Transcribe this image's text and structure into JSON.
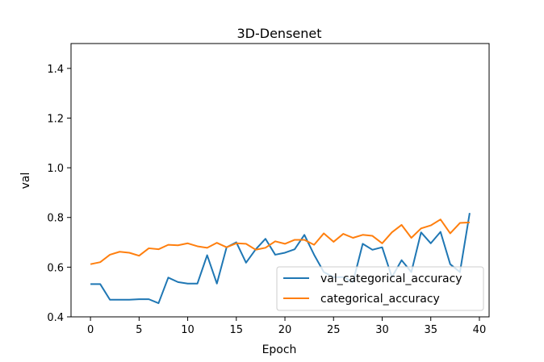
{
  "chart_data": {
    "type": "line",
    "title": "3D-Densenet",
    "xlabel": "Epoch",
    "ylabel": "val",
    "xlim": [
      -2,
      41
    ],
    "ylim": [
      0.4,
      1.5
    ],
    "xticks": [
      0,
      5,
      10,
      15,
      20,
      25,
      30,
      35,
      40
    ],
    "xtick_labels": [
      "0",
      "5",
      "10",
      "15",
      "20",
      "25",
      "30",
      "35",
      "40"
    ],
    "yticks": [
      0.4,
      0.6,
      0.8,
      1.0,
      1.2,
      1.4
    ],
    "ytick_labels": [
      "0.4",
      "0.6",
      "0.8",
      "1.0",
      "1.2",
      "1.4"
    ],
    "grid": false,
    "legend_position": "lower-right",
    "x": [
      0,
      1,
      2,
      3,
      4,
      5,
      6,
      7,
      8,
      9,
      10,
      11,
      12,
      13,
      14,
      15,
      16,
      17,
      18,
      19,
      20,
      21,
      22,
      23,
      24,
      25,
      26,
      27,
      28,
      29,
      30,
      31,
      32,
      33,
      34,
      35,
      36,
      37,
      38,
      39
    ],
    "series": [
      {
        "name": "val_categorical_accuracy",
        "color": "#1f77b4",
        "values": [
          0.532,
          0.532,
          0.469,
          0.469,
          0.469,
          0.471,
          0.471,
          0.455,
          0.558,
          0.54,
          0.534,
          0.534,
          0.648,
          0.534,
          0.68,
          0.7,
          0.618,
          0.672,
          0.714,
          0.65,
          0.658,
          0.672,
          0.73,
          0.65,
          0.58,
          0.56,
          0.56,
          0.54,
          0.694,
          0.67,
          0.68,
          0.56,
          0.628,
          0.58,
          0.74,
          0.696,
          0.742,
          0.612,
          0.58,
          0.818
        ]
      },
      {
        "name": "categorical_accuracy",
        "color": "#ff7f0e",
        "values": [
          0.612,
          0.62,
          0.65,
          0.662,
          0.658,
          0.646,
          0.676,
          0.672,
          0.69,
          0.688,
          0.696,
          0.684,
          0.678,
          0.698,
          0.68,
          0.696,
          0.694,
          0.67,
          0.678,
          0.704,
          0.694,
          0.71,
          0.71,
          0.69,
          0.736,
          0.702,
          0.734,
          0.718,
          0.73,
          0.726,
          0.696,
          0.74,
          0.77,
          0.718,
          0.756,
          0.768,
          0.792,
          0.736,
          0.778,
          0.78
        ]
      }
    ]
  }
}
